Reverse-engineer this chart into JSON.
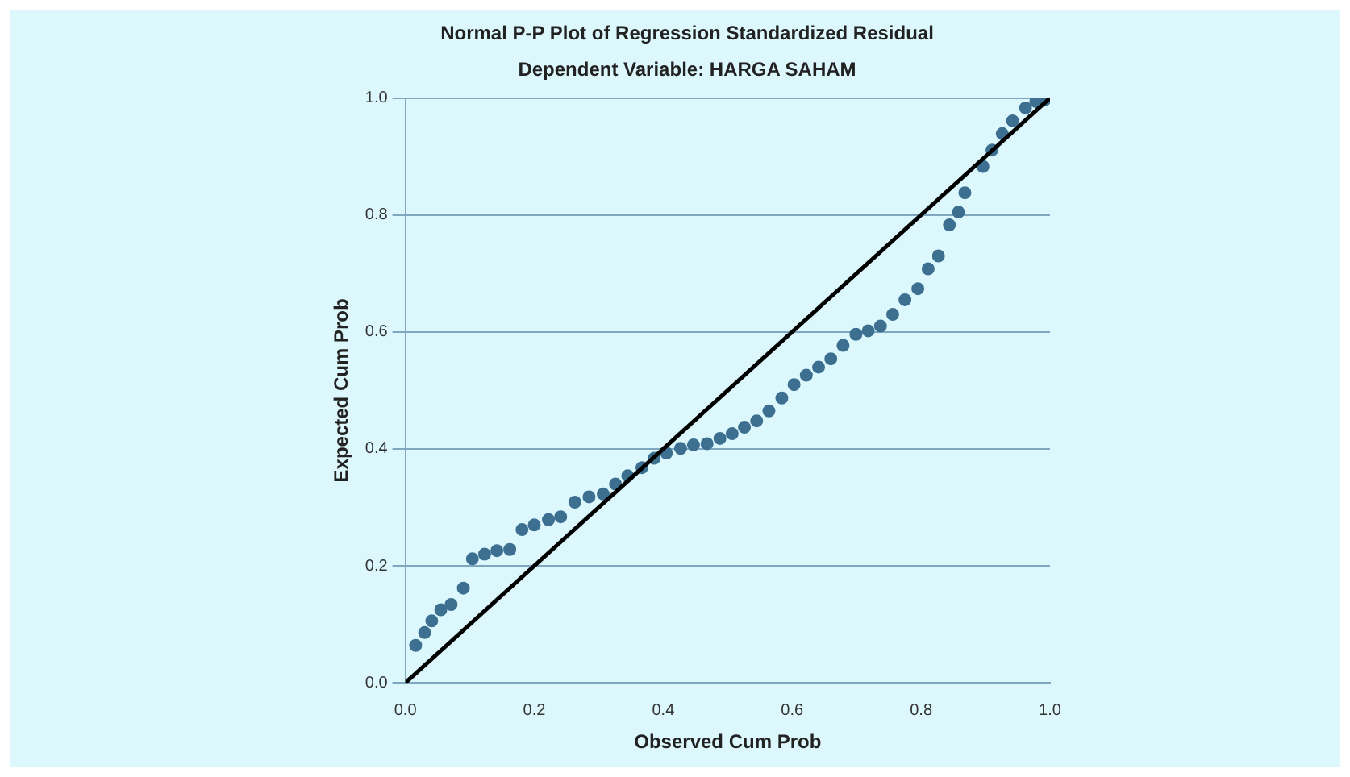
{
  "chart_data": {
    "type": "scatter",
    "title": "Normal P-P Plot of Regression Standardized Residual",
    "subtitle": "Dependent Variable: HARGA SAHAM",
    "xlabel": "Observed Cum Prob",
    "ylabel": "Expected Cum Prob",
    "series": [
      {
        "color": "#3d6f91",
        "marker": "circle",
        "x": [
          0.016,
          0.03,
          0.041,
          0.055,
          0.071,
          0.09,
          0.104,
          0.123,
          0.142,
          0.162,
          0.181,
          0.2,
          0.222,
          0.241,
          0.263,
          0.285,
          0.307,
          0.326,
          0.345,
          0.367,
          0.386,
          0.405,
          0.427,
          0.447,
          0.468,
          0.488,
          0.507,
          0.526,
          0.545,
          0.564,
          0.584,
          0.603,
          0.622,
          0.641,
          0.66,
          0.679,
          0.699,
          0.718,
          0.737,
          0.756,
          0.775,
          0.795,
          0.811,
          0.827,
          0.844,
          0.858,
          0.868,
          0.896,
          0.91,
          0.926,
          0.942,
          0.962,
          0.978,
          0.992
        ],
        "values": [
          0.064,
          0.086,
          0.106,
          0.125,
          0.134,
          0.162,
          0.212,
          0.22,
          0.226,
          0.228,
          0.262,
          0.27,
          0.279,
          0.284,
          0.309,
          0.318,
          0.323,
          0.34,
          0.354,
          0.368,
          0.384,
          0.393,
          0.401,
          0.407,
          0.409,
          0.418,
          0.426,
          0.437,
          0.448,
          0.465,
          0.487,
          0.51,
          0.526,
          0.54,
          0.554,
          0.577,
          0.596,
          0.602,
          0.61,
          0.63,
          0.655,
          0.674,
          0.708,
          0.73,
          0.783,
          0.805,
          0.838,
          0.883,
          0.911,
          0.939,
          0.961,
          0.983,
          0.994,
          0.997
        ]
      },
      {
        "type": "line",
        "marker": "none",
        "color": "#000000",
        "x": [
          0,
          1
        ],
        "values": [
          0,
          1
        ]
      }
    ],
    "xlim": [
      0,
      1
    ],
    "ylim": [
      0,
      1
    ],
    "xticks": [
      {
        "value": 0,
        "label": "0.0"
      },
      {
        "value": 0.2,
        "label": "0.2"
      },
      {
        "value": 0.4,
        "label": "0.4"
      },
      {
        "value": 0.6,
        "label": "0.6"
      },
      {
        "value": 0.8,
        "label": "0.8"
      },
      {
        "value": 1,
        "label": "1.0"
      }
    ],
    "yticks": [
      {
        "value": 0,
        "label": "0.0"
      },
      {
        "value": 0.2,
        "label": "0.2"
      },
      {
        "value": 0.4,
        "label": "0.4"
      },
      {
        "value": 0.6,
        "label": "0.6"
      },
      {
        "value": 0.8,
        "label": "0.8"
      },
      {
        "value": 1,
        "label": "1.0"
      }
    ],
    "grid": "y",
    "legend": false
  }
}
